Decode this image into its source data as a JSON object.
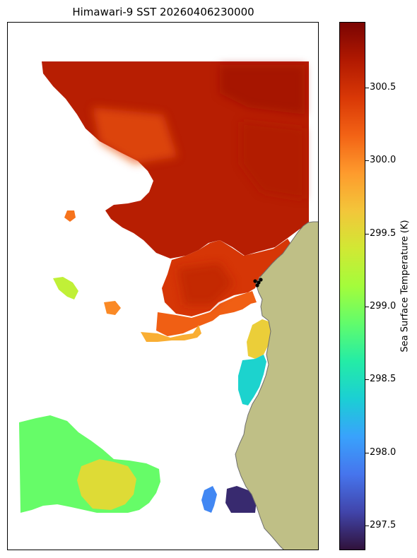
{
  "title": "Himawari-9 SST 20260406230000",
  "colorbar": {
    "label": "Sea Surface Temperature (K)",
    "min": 297.33,
    "max": 300.95,
    "ticks": [
      "297.5",
      "298.0",
      "298.5",
      "299.0",
      "299.5",
      "300.0",
      "300.5"
    ],
    "tick_values": [
      297.5,
      298.0,
      298.5,
      299.0,
      299.5,
      300.0,
      300.5
    ]
  },
  "colors": {
    "land": "#BFBF86",
    "coast": "#6E6E6E",
    "colormap": [
      "#30123B",
      "#4145AB",
      "#4675ED",
      "#39A2FC",
      "#1BCFD4",
      "#24ECA6",
      "#61FC6C",
      "#A4FC3B",
      "#D1E834",
      "#F3C63A",
      "#FE9B2D",
      "#F36315",
      "#D93806",
      "#B11901",
      "#7A0402"
    ]
  },
  "chart_data": {
    "type": "heatmap",
    "title": "Himawari-9 SST 20260406230000",
    "colorbar_label": "Sea Surface Temperature (K)",
    "value_range": [
      297.33,
      300.95
    ],
    "regions": [
      {
        "region": "north",
        "sst_k": 300.65
      },
      {
        "region": "central-west",
        "sst_k": 300.45
      },
      {
        "region": "central-south",
        "sst_k": 300.2
      },
      {
        "region": "south-edge",
        "sst_k": 299.8
      },
      {
        "region": "coastal-strip-north",
        "sst_k": 299.6
      },
      {
        "region": "coastal-strip-south",
        "sst_k": 298.4
      },
      {
        "region": "southwest",
        "sst_k": 298.9
      },
      {
        "region": "southwest-center",
        "sst_k": 299.5
      },
      {
        "region": "southeast-small",
        "sst_k": 297.95
      },
      {
        "region": "southeast-dark",
        "sst_k": 297.45
      },
      {
        "region": "west-island-a",
        "sst_k": 300.1
      },
      {
        "region": "west-island-b",
        "sst_k": 299.3
      },
      {
        "region": "west-island-c",
        "sst_k": 300.0
      }
    ]
  }
}
